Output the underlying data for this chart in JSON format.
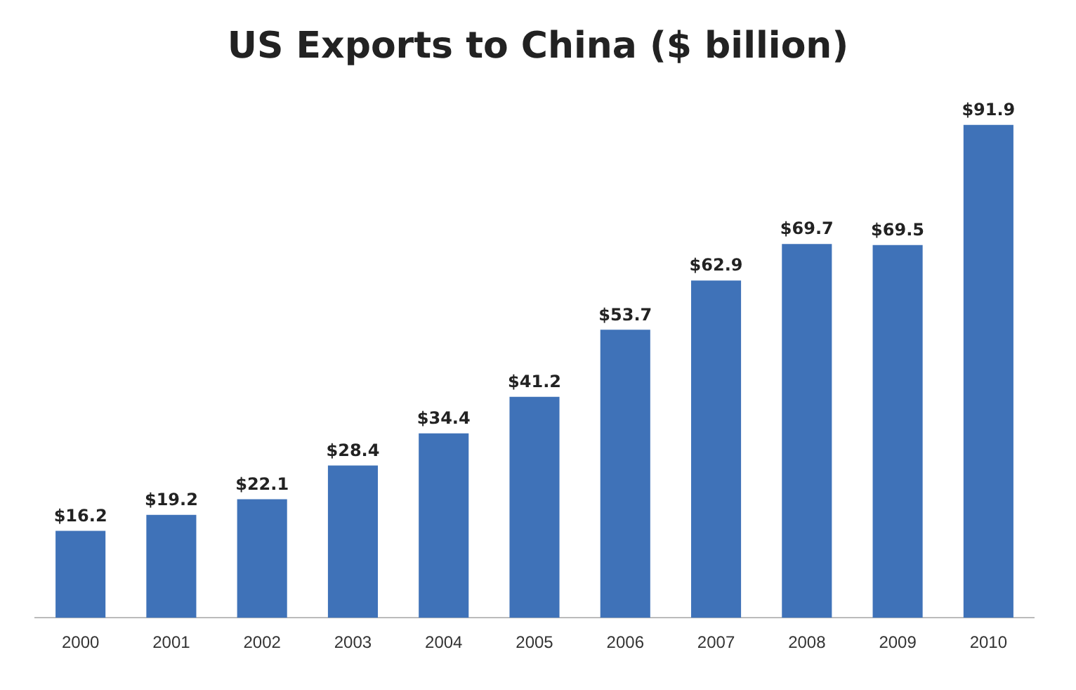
{
  "chart_data": {
    "type": "bar",
    "title": "US Exports to China ($ billion)",
    "categories": [
      "2000",
      "2001",
      "2002",
      "2003",
      "2004",
      "2005",
      "2006",
      "2007",
      "2008",
      "2009",
      "2010"
    ],
    "values": [
      16.2,
      19.2,
      22.1,
      28.4,
      34.4,
      41.2,
      53.7,
      62.9,
      69.7,
      69.5,
      91.9
    ],
    "value_labels": [
      "$16.2",
      "$19.2",
      "$22.1",
      "$28.4",
      "$34.4",
      "$41.2",
      "$53.7",
      "$62.9",
      "$69.7",
      "$69.5",
      "$91.9"
    ],
    "color": "#3f72b8",
    "grid": false,
    "legend": false,
    "tick_labels": "x"
  }
}
